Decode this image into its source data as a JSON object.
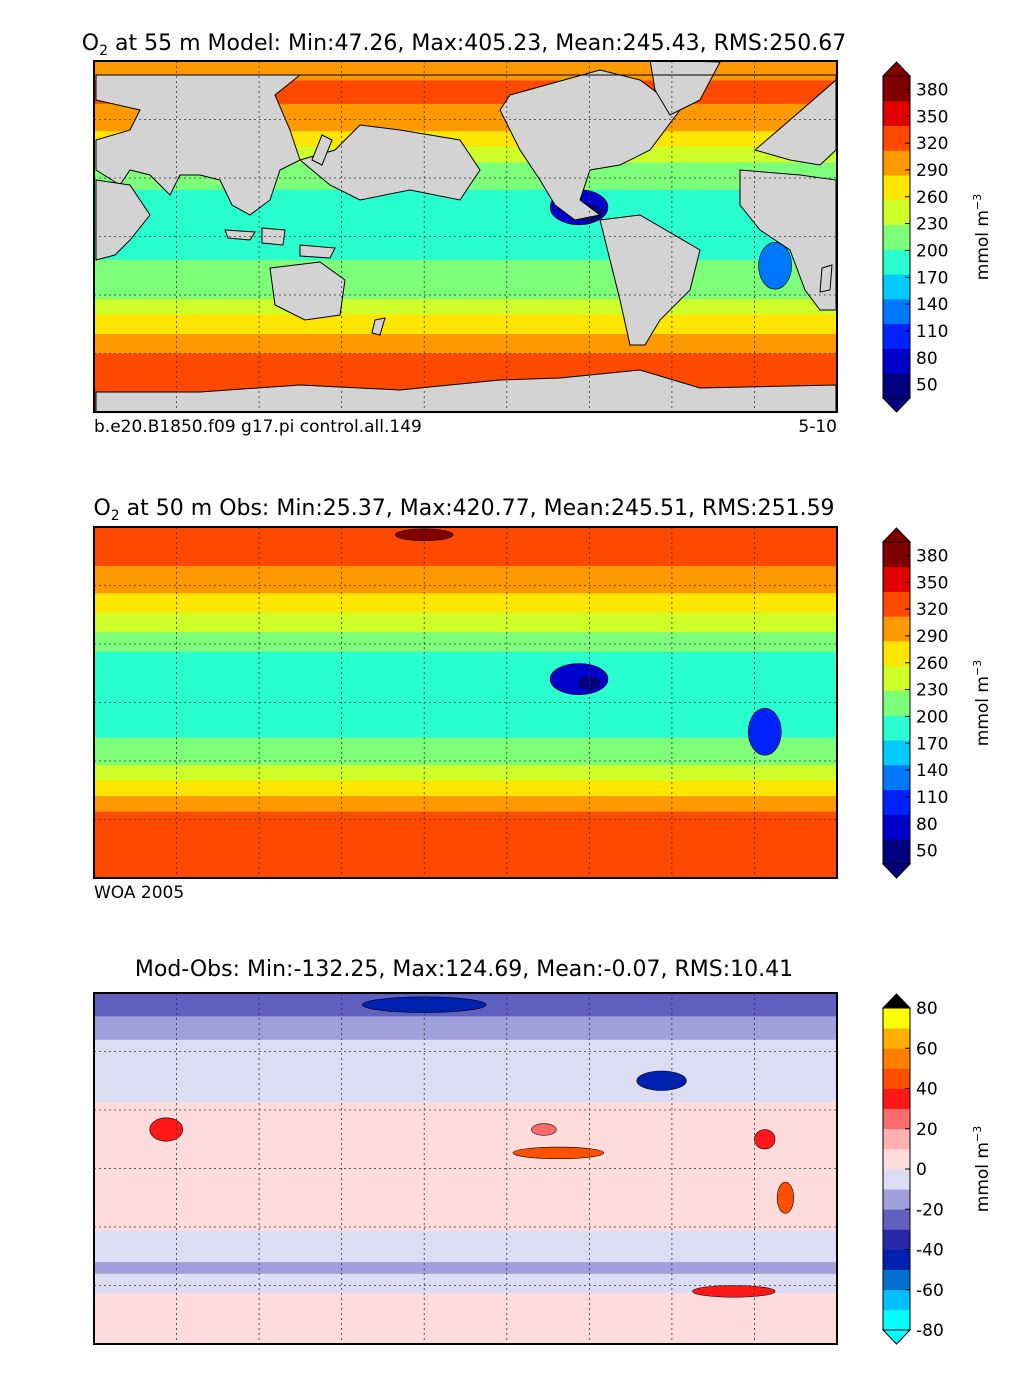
{
  "chart_data": [
    {
      "type": "heatmap",
      "title_species": "O",
      "title_subscript": "2",
      "title_rest": " at 55 m Model: Min:47.26, Max:405.23, Mean:245.43, RMS:250.67",
      "stats": {
        "depth_m": 55,
        "min": 47.26,
        "max": 405.23,
        "mean": 245.43,
        "rms": 250.67
      },
      "footnote_left": "b.e20.B1850.f09 g17.pi control.all.149",
      "footnote_right": "5-10",
      "colorbar": {
        "label": "mmol m",
        "label_exponent": "−3",
        "boundaries": [
          35,
          65,
          95,
          125,
          155,
          185,
          215,
          245,
          275,
          305,
          335,
          365,
          395
        ],
        "tick_values": [
          50,
          80,
          110,
          140,
          170,
          200,
          230,
          260,
          290,
          320,
          350,
          380
        ],
        "tick_labels": [
          "50",
          "80",
          "110",
          "140",
          "170",
          "200",
          "230",
          "260",
          "290",
          "320",
          "350",
          "380"
        ],
        "colors": [
          "#000080",
          "#0000cc",
          "#0022ff",
          "#0077ff",
          "#00ccff",
          "#29ffce",
          "#7dff7a",
          "#ceff29",
          "#ffe600",
          "#ff9900",
          "#ff4800",
          "#e00000",
          "#800000"
        ],
        "extend": "both"
      },
      "lat_bands": [
        {
          "lat": 90,
          "value": 330
        },
        {
          "lat": 80,
          "value": 335
        },
        {
          "lat": 70,
          "value": 340
        },
        {
          "lat": 60,
          "value": 320
        },
        {
          "lat": 50,
          "value": 290
        },
        {
          "lat": 40,
          "value": 250
        },
        {
          "lat": 30,
          "value": 222
        },
        {
          "lat": 20,
          "value": 208
        },
        {
          "lat": 10,
          "value": 200
        },
        {
          "lat": 0,
          "value": 202
        },
        {
          "lat": -10,
          "value": 212
        },
        {
          "lat": -20,
          "value": 222
        },
        {
          "lat": -30,
          "value": 240
        },
        {
          "lat": -40,
          "value": 272
        },
        {
          "lat": -50,
          "value": 305
        },
        {
          "lat": -60,
          "value": 335
        },
        {
          "lat": -70,
          "value": 342
        },
        {
          "lat": -80,
          "value": 340
        },
        {
          "lat": -90,
          "value": 340
        }
      ],
      "lows": [
        {
          "lon": 255,
          "lat": 15,
          "r_lon": 14,
          "r_lat": 9,
          "value": 80
        },
        {
          "lon": 260,
          "lat": 12,
          "r_lon": 6,
          "r_lat": 4,
          "value": 50
        },
        {
          "lon": 350,
          "lat": -15,
          "r_lon": 8,
          "r_lat": 12,
          "value": 140
        }
      ]
    },
    {
      "type": "heatmap",
      "title_species": "O",
      "title_subscript": "2",
      "title_rest": " at 50 m Obs: Min:25.37, Max:420.77, Mean:245.51, RMS:251.59",
      "stats": {
        "depth_m": 50,
        "min": 25.37,
        "max": 420.77,
        "mean": 245.51,
        "rms": 251.59
      },
      "footnote_left": "WOA 2005",
      "footnote_right": "",
      "colorbar": {
        "label": "mmol m",
        "label_exponent": "−3",
        "boundaries": [
          35,
          65,
          95,
          125,
          155,
          185,
          215,
          245,
          275,
          305,
          335,
          365,
          395
        ],
        "tick_values": [
          50,
          80,
          110,
          140,
          170,
          200,
          230,
          260,
          290,
          320,
          350,
          380
        ],
        "tick_labels": [
          "50",
          "80",
          "110",
          "140",
          "170",
          "200",
          "230",
          "260",
          "290",
          "320",
          "350",
          "380"
        ],
        "colors": [
          "#000080",
          "#0000cc",
          "#0022ff",
          "#0077ff",
          "#00ccff",
          "#29ffce",
          "#7dff7a",
          "#ceff29",
          "#ffe600",
          "#ff9900",
          "#ff4800",
          "#e00000",
          "#800000"
        ],
        "extend": "both"
      },
      "lat_bands": [
        {
          "lat": 90,
          "value": 360
        },
        {
          "lat": 80,
          "value": 345
        },
        {
          "lat": 70,
          "value": 335
        },
        {
          "lat": 60,
          "value": 315
        },
        {
          "lat": 50,
          "value": 290
        },
        {
          "lat": 40,
          "value": 255
        },
        {
          "lat": 30,
          "value": 222
        },
        {
          "lat": 20,
          "value": 205
        },
        {
          "lat": 10,
          "value": 195
        },
        {
          "lat": 0,
          "value": 198
        },
        {
          "lat": -10,
          "value": 205
        },
        {
          "lat": -20,
          "value": 218
        },
        {
          "lat": -30,
          "value": 240
        },
        {
          "lat": -40,
          "value": 275
        },
        {
          "lat": -50,
          "value": 315
        },
        {
          "lat": -60,
          "value": 345
        },
        {
          "lat": -70,
          "value": 338
        },
        {
          "lat": -80,
          "value": 335
        },
        {
          "lat": -90,
          "value": 335
        }
      ],
      "lows": [
        {
          "lon": 255,
          "lat": 12,
          "r_lon": 14,
          "r_lat": 8,
          "value": 80
        },
        {
          "lon": 260,
          "lat": 10,
          "r_lon": 5,
          "r_lat": 3,
          "value": 50
        },
        {
          "lon": 345,
          "lat": -15,
          "r_lon": 8,
          "r_lat": 12,
          "value": 110
        },
        {
          "lon": 180,
          "lat": 86,
          "r_lon": 14,
          "r_lat": 3,
          "value": 410
        }
      ]
    },
    {
      "type": "heatmap",
      "title_species": "",
      "title_subscript": "",
      "title_rest": "Mod-Obs: Min:-132.25, Max:124.69, Mean:-0.07, RMS:10.41",
      "stats": {
        "min": -132.25,
        "max": 124.69,
        "mean": -0.07,
        "rms": 10.41
      },
      "footnote_left": "",
      "footnote_right": "",
      "colorbar": {
        "label": "mmol m",
        "label_exponent": "−3",
        "boundaries": [
          -80,
          -70,
          -60,
          -50,
          -40,
          -30,
          -20,
          -10,
          0,
          10,
          20,
          30,
          40,
          50,
          60,
          70,
          80
        ],
        "tick_values": [
          -80,
          -60,
          -40,
          -20,
          0,
          20,
          40,
          60,
          80
        ],
        "tick_labels": [
          "-80",
          "-60",
          "-40",
          "-20",
          "0",
          "20",
          "40",
          "60",
          "80"
        ],
        "colors": [
          "#00ffff",
          "#00c0ff",
          "#0070d0",
          "#0020b0",
          "#2828a8",
          "#6060c0",
          "#a0a0dc",
          "#dcdcf2",
          "#ffdcdc",
          "#ffb0b0",
          "#ff6a6a",
          "#ff1818",
          "#ff5000",
          "#ff8000",
          "#ffb000",
          "#ffff00"
        ],
        "extend": "both"
      },
      "lat_bands": [
        {
          "lat": 90,
          "value": -25
        },
        {
          "lat": 80,
          "value": -22
        },
        {
          "lat": 70,
          "value": -12
        },
        {
          "lat": 60,
          "value": -8
        },
        {
          "lat": 50,
          "value": -5
        },
        {
          "lat": 40,
          "value": -4
        },
        {
          "lat": 30,
          "value": 3
        },
        {
          "lat": 20,
          "value": 4
        },
        {
          "lat": 10,
          "value": 3
        },
        {
          "lat": 0,
          "value": 2
        },
        {
          "lat": -10,
          "value": 3
        },
        {
          "lat": -20,
          "value": 3
        },
        {
          "lat": -30,
          "value": 2
        },
        {
          "lat": -40,
          "value": -5
        },
        {
          "lat": -50,
          "value": -12
        },
        {
          "lat": -60,
          "value": -8
        },
        {
          "lat": -70,
          "value": 8
        },
        {
          "lat": -80,
          "value": 5
        },
        {
          "lat": -90,
          "value": 5
        }
      ],
      "lows": [
        {
          "lon": 245,
          "lat": 8,
          "r_lon": 22,
          "r_lat": 3,
          "value": 45
        },
        {
          "lon": 238,
          "lat": 20,
          "r_lon": 6,
          "r_lat": 3,
          "value": 25
        },
        {
          "lon": 355,
          "lat": -15,
          "r_lon": 4,
          "r_lat": 8,
          "value": 40
        },
        {
          "lon": 345,
          "lat": 15,
          "r_lon": 5,
          "r_lat": 5,
          "value": 35
        },
        {
          "lon": 55,
          "lat": 20,
          "r_lon": 8,
          "r_lat": 6,
          "value": 30
        },
        {
          "lon": 295,
          "lat": 45,
          "r_lon": 12,
          "r_lat": 5,
          "value": -50
        },
        {
          "lon": 180,
          "lat": 84,
          "r_lon": 30,
          "r_lat": 4,
          "value": -50
        },
        {
          "lon": 330,
          "lat": -63,
          "r_lon": 20,
          "r_lat": 3,
          "value": 30
        }
      ]
    }
  ]
}
